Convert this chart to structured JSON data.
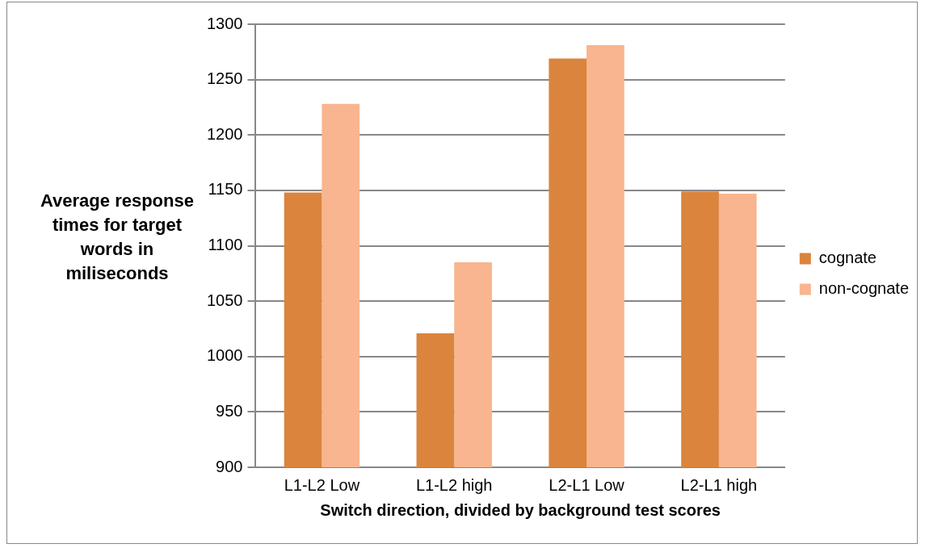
{
  "chart_data": {
    "type": "bar",
    "xlabel": "Switch direction, divided by background test scores",
    "ylabel": "Average response times for target words in miliseconds",
    "categories": [
      "L1-L2 Low",
      "L1-L2 high",
      "L2-L1 Low",
      "L2-L1 high"
    ],
    "series": [
      {
        "name": "cognate",
        "color": "#db843d",
        "values": [
          1148,
          1021,
          1269,
          1149
        ]
      },
      {
        "name": "non-cognate",
        "color": "#f8b58f",
        "values": [
          1228,
          1085,
          1281,
          1147
        ]
      }
    ],
    "ylim": [
      900,
      1300
    ],
    "yticks": [
      900,
      950,
      1000,
      1050,
      1100,
      1150,
      1200,
      1250,
      1300
    ],
    "grid": "y",
    "legend": "right"
  }
}
